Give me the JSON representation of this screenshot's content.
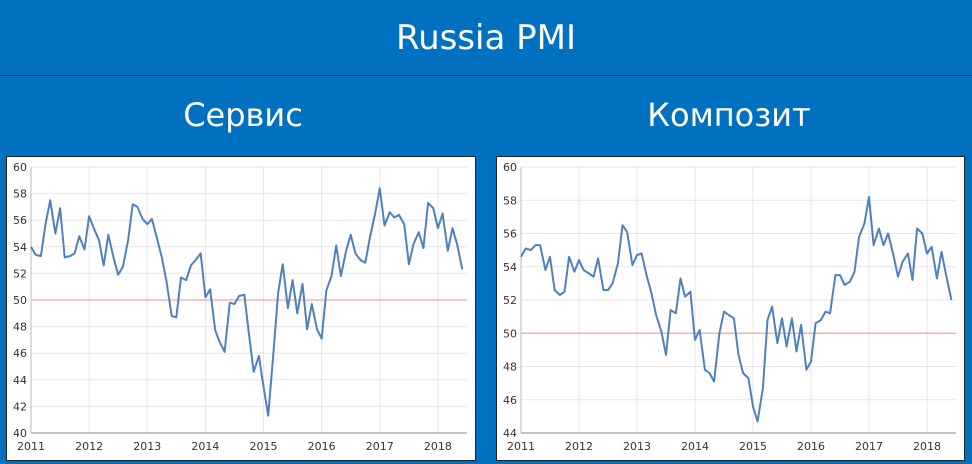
{
  "header": {
    "title": "Russia PMI"
  },
  "panels": [
    {
      "title": "Сервис"
    },
    {
      "title": "Композит"
    }
  ],
  "colors": {
    "background": "#0070c0",
    "line": "#4f81bd",
    "reference_line": "#f2a6a6",
    "grid": "#e6e6e6"
  },
  "chart_data": [
    {
      "type": "line",
      "title": "Сервис",
      "xlim": [
        2011,
        2018.5
      ],
      "ylim": [
        40,
        60
      ],
      "x_ticks": [
        "2011",
        "2012",
        "2013",
        "2014",
        "2015",
        "2016",
        "2017",
        "2018"
      ],
      "y_ticks": [
        "40",
        "42",
        "44",
        "46",
        "48",
        "50",
        "52",
        "54",
        "56",
        "58",
        "60"
      ],
      "reference_line": 50,
      "grid": true,
      "series": [
        {
          "x": [
            2011.0,
            2011.08,
            2011.17,
            2011.25,
            2011.33,
            2011.42,
            2011.5,
            2011.58,
            2011.67,
            2011.75,
            2011.83,
            2011.92,
            2012.0,
            2012.08,
            2012.17,
            2012.25,
            2012.33,
            2012.42,
            2012.5,
            2012.58,
            2012.67,
            2012.75,
            2012.83,
            2012.92,
            2013.0,
            2013.08,
            2013.17,
            2013.25,
            2013.33,
            2013.42,
            2013.5,
            2013.58,
            2013.67,
            2013.75,
            2013.83,
            2013.92,
            2014.0,
            2014.08,
            2014.17,
            2014.25,
            2014.33,
            2014.42,
            2014.5,
            2014.58,
            2014.67,
            2014.75,
            2014.83,
            2014.92,
            2015.0,
            2015.08,
            2015.17,
            2015.25,
            2015.33,
            2015.42,
            2015.5,
            2015.58,
            2015.67,
            2015.75,
            2015.83,
            2015.92,
            2016.0,
            2016.08,
            2016.17,
            2016.25,
            2016.33,
            2016.42,
            2016.5,
            2016.58,
            2016.67,
            2016.75,
            2016.83,
            2016.92,
            2017.0,
            2017.08,
            2017.17,
            2017.25,
            2017.33,
            2017.42,
            2017.5,
            2017.58,
            2017.67,
            2017.75,
            2017.83,
            2017.92,
            2018.0,
            2018.08,
            2018.17,
            2018.25,
            2018.33,
            2018.42
          ],
          "y": [
            54.0,
            53.4,
            53.3,
            55.7,
            57.5,
            55.0,
            56.9,
            53.2,
            53.3,
            53.5,
            54.8,
            53.8,
            56.3,
            55.4,
            54.5,
            52.6,
            54.9,
            53.2,
            51.9,
            52.5,
            54.5,
            57.2,
            57.0,
            56.1,
            55.7,
            56.1,
            54.6,
            53.2,
            51.4,
            48.8,
            48.7,
            51.7,
            51.5,
            52.6,
            53.0,
            53.5,
            50.2,
            50.8,
            47.7,
            46.8,
            46.1,
            49.8,
            49.7,
            50.3,
            50.4,
            47.4,
            44.6,
            45.8,
            43.5,
            41.3,
            46.0,
            50.5,
            52.7,
            49.4,
            51.5,
            49.0,
            51.2,
            47.8,
            49.7,
            47.8,
            47.1,
            50.7,
            51.8,
            54.1,
            51.8,
            53.7,
            54.9,
            53.5,
            53.0,
            52.8,
            54.7,
            56.5,
            58.4,
            55.6,
            56.6,
            56.2,
            56.4,
            55.7,
            52.7,
            54.2,
            55.1,
            53.9,
            57.3,
            56.9,
            55.4,
            56.5,
            53.7,
            55.4,
            54.2,
            52.3
          ]
        }
      ]
    },
    {
      "type": "line",
      "title": "Композит",
      "xlim": [
        2011,
        2018.5
      ],
      "ylim": [
        44,
        60
      ],
      "x_ticks": [
        "2011",
        "2012",
        "2013",
        "2014",
        "2015",
        "2016",
        "2017",
        "2018"
      ],
      "y_ticks": [
        "44",
        "46",
        "48",
        "50",
        "52",
        "54",
        "56",
        "58",
        "60"
      ],
      "reference_line": 50,
      "grid": true,
      "series": [
        {
          "x": [
            2011.0,
            2011.08,
            2011.17,
            2011.25,
            2011.33,
            2011.42,
            2011.5,
            2011.58,
            2011.67,
            2011.75,
            2011.83,
            2011.92,
            2012.0,
            2012.08,
            2012.17,
            2012.25,
            2012.33,
            2012.42,
            2012.5,
            2012.58,
            2012.67,
            2012.75,
            2012.83,
            2012.92,
            2013.0,
            2013.08,
            2013.17,
            2013.25,
            2013.33,
            2013.42,
            2013.5,
            2013.58,
            2013.67,
            2013.75,
            2013.83,
            2013.92,
            2014.0,
            2014.08,
            2014.17,
            2014.25,
            2014.33,
            2014.42,
            2014.5,
            2014.58,
            2014.67,
            2014.75,
            2014.83,
            2014.92,
            2015.0,
            2015.08,
            2015.17,
            2015.25,
            2015.33,
            2015.42,
            2015.5,
            2015.58,
            2015.67,
            2015.75,
            2015.83,
            2015.92,
            2016.0,
            2016.08,
            2016.17,
            2016.25,
            2016.33,
            2016.42,
            2016.5,
            2016.58,
            2016.67,
            2016.75,
            2016.83,
            2016.92,
            2017.0,
            2017.08,
            2017.17,
            2017.25,
            2017.33,
            2017.42,
            2017.5,
            2017.58,
            2017.67,
            2017.75,
            2017.83,
            2017.92,
            2018.0,
            2018.08,
            2018.17,
            2018.25,
            2018.33,
            2018.42
          ],
          "y": [
            54.6,
            55.1,
            55.0,
            55.3,
            55.3,
            53.8,
            54.6,
            52.6,
            52.3,
            52.5,
            54.6,
            53.7,
            54.4,
            53.8,
            53.6,
            53.4,
            54.5,
            52.6,
            52.6,
            53.0,
            54.2,
            56.5,
            56.1,
            54.1,
            54.7,
            54.8,
            53.4,
            52.4,
            51.1,
            50.1,
            48.7,
            51.4,
            51.2,
            53.3,
            52.2,
            52.5,
            49.6,
            50.2,
            47.8,
            47.6,
            47.1,
            50.0,
            51.3,
            51.1,
            50.9,
            48.7,
            47.6,
            47.3,
            45.6,
            44.7,
            46.7,
            50.8,
            51.6,
            49.4,
            50.9,
            49.2,
            50.9,
            48.9,
            50.5,
            47.8,
            48.3,
            50.6,
            50.8,
            51.3,
            51.2,
            53.5,
            53.5,
            52.9,
            53.1,
            53.7,
            55.8,
            56.6,
            58.2,
            55.3,
            56.3,
            55.3,
            56.0,
            54.7,
            53.4,
            54.3,
            54.8,
            53.2,
            56.3,
            56.0,
            54.8,
            55.2,
            53.3,
            54.9,
            53.5,
            52.0
          ]
        }
      ]
    }
  ]
}
